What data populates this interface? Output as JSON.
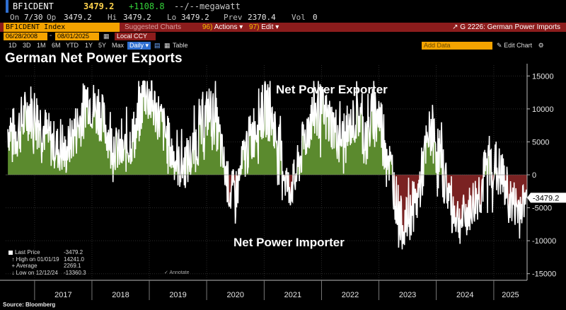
{
  "ticker": {
    "symbol": "BF1CDENT",
    "last": "3479.2",
    "change": "+1108.8",
    "change_pct": "--/--",
    "unit": "megawatt"
  },
  "quote": {
    "on_label": "On",
    "on_value": "7/30",
    "open_label": "Op",
    "open_value": "3479.2",
    "high_label": "Hi",
    "high_value": "3479.2",
    "low_label": "Lo",
    "low_value": "3479.2",
    "prev_label": "Prev",
    "prev_value": "2370.4",
    "vol_label": "Vol",
    "vol_value": "0"
  },
  "command_bar": {
    "index_field": "BF1CDENT Index",
    "suggested_charts": "Suggested Charts",
    "actions_num": "96)",
    "actions_label": "Actions",
    "edit_num": "97)",
    "edit_label": "Edit",
    "chart_name": "G 2226: German Power Imports"
  },
  "date_range": {
    "start": "06/28/2008",
    "separator": "-",
    "end": "08/01/2025",
    "currency": "Local CCY"
  },
  "periods": [
    "1D",
    "3D",
    "1M",
    "6M",
    "YTD",
    "1Y",
    "5Y",
    "Max"
  ],
  "period_selected": "Daily",
  "table_label": "Table",
  "add_data": "Add Data",
  "edit_chart": "Edit Chart",
  "colors": {
    "accent_orange": "#f4a300",
    "command_red": "#8c1c1c",
    "positive_fill": "#5b8a2e",
    "negative_fill": "#7a2222",
    "line": "#ffffff",
    "last_price_green": "#34d33a"
  },
  "chart_data": {
    "type": "area",
    "title": "German Net Power Exports",
    "xlabel": "",
    "ylabel": "",
    "ylim": [
      -16000,
      16000
    ],
    "yticks": [
      15000,
      10000,
      5000,
      0,
      -5000,
      -10000,
      -15000
    ],
    "ytick_labels": [
      "15000",
      "10000",
      "5000",
      "0",
      "-5000",
      "-10000",
      "-15000"
    ],
    "x_range": [
      "2016-07-01",
      "2025-08-01"
    ],
    "x_tick_labels": [
      "2017",
      "2018",
      "2019",
      "2020",
      "2021",
      "2022",
      "2023",
      "2024",
      "2025"
    ],
    "last_value_label": "-3479.2",
    "annotations": [
      {
        "text": "Net Power Exporter"
      },
      {
        "text": "Net Power Importer"
      }
    ],
    "series": [
      {
        "name": "BF1CDENT",
        "x": [
          "2016-07-15",
          "2016-09-01",
          "2016-10-15",
          "2016-12-01",
          "2017-01-15",
          "2017-03-01",
          "2017-04-15",
          "2017-06-01",
          "2017-07-15",
          "2017-09-01",
          "2017-10-15",
          "2017-12-01",
          "2018-01-15",
          "2018-03-01",
          "2018-04-15",
          "2018-06-01",
          "2018-07-15",
          "2018-09-01",
          "2018-10-15",
          "2018-12-01",
          "2019-01-15",
          "2019-03-01",
          "2019-04-15",
          "2019-06-01",
          "2019-07-15",
          "2019-09-01",
          "2019-10-15",
          "2019-12-01",
          "2020-01-15",
          "2020-03-01",
          "2020-04-15",
          "2020-06-01",
          "2020-07-15",
          "2020-09-01",
          "2020-10-15",
          "2020-12-01",
          "2021-01-15",
          "2021-03-01",
          "2021-04-15",
          "2021-06-01",
          "2021-07-15",
          "2021-09-01",
          "2021-10-15",
          "2021-12-01",
          "2022-01-15",
          "2022-03-01",
          "2022-04-15",
          "2022-06-01",
          "2022-07-15",
          "2022-09-01",
          "2022-10-15",
          "2022-12-01",
          "2023-01-15",
          "2023-03-01",
          "2023-04-15",
          "2023-06-01",
          "2023-07-15",
          "2023-09-01",
          "2023-10-15",
          "2023-12-01",
          "2024-01-15",
          "2024-03-01",
          "2024-04-15",
          "2024-06-01",
          "2024-07-15",
          "2024-09-01",
          "2024-10-15",
          "2024-12-01",
          "2025-01-15",
          "2025-03-01",
          "2025-04-15",
          "2025-06-01",
          "2025-07-30"
        ],
        "values": [
          7000,
          6000,
          8000,
          10000,
          9000,
          7000,
          5000,
          4000,
          3000,
          6000,
          8000,
          12000,
          10000,
          9000,
          6000,
          4000,
          3000,
          5000,
          7000,
          13000,
          11000,
          9000,
          6000,
          3000,
          1000,
          2000,
          4000,
          7000,
          10000,
          8000,
          2000,
          -3000,
          -2000,
          3000,
          6000,
          9000,
          10000,
          8000,
          3000,
          -2000,
          -1000,
          4000,
          8000,
          10000,
          9000,
          8000,
          6000,
          5000,
          8000,
          9000,
          5000,
          10000,
          8000,
          3000,
          -3000,
          -8000,
          -6000,
          -4000,
          2000,
          7000,
          3000,
          -1000,
          -5000,
          -7000,
          -6000,
          -4000,
          -2000,
          2000,
          1000,
          -1000,
          -4000,
          -5000,
          -3479.2
        ],
        "amplitude": [
          4000,
          5000,
          5000,
          5000,
          5000,
          4500,
          4500,
          4000,
          4000,
          4500,
          5000,
          4500,
          5000,
          4500,
          4000,
          4000,
          4000,
          4500,
          5000,
          5000,
          5000,
          4500,
          4500,
          4000,
          4000,
          4500,
          4500,
          5000,
          4500,
          4500,
          4000,
          4000,
          4000,
          4500,
          5000,
          5000,
          5000,
          4500,
          4500,
          4000,
          4000,
          4500,
          5000,
          5000,
          5000,
          4500,
          4500,
          4000,
          4000,
          4500,
          5000,
          5000,
          5000,
          4500,
          4500,
          4000,
          4000,
          4500,
          5000,
          5000,
          5000,
          4500,
          4500,
          4000,
          4000,
          4500,
          5000,
          5000,
          5000,
          4500,
          4500,
          4000,
          3000
        ]
      }
    ],
    "legend": {
      "position": "bottom-left",
      "entries": [
        {
          "label": "Last Price",
          "value": "-3479.2"
        },
        {
          "label": "High on 01/01/19",
          "value": "14241.0"
        },
        {
          "label": "Average",
          "value": "2269.1"
        },
        {
          "label": "Low on 12/12/24",
          "value": "-13360.3"
        }
      ]
    },
    "grid": true
  },
  "annotate_label": "Annotate",
  "source": "Source: Bloomberg"
}
